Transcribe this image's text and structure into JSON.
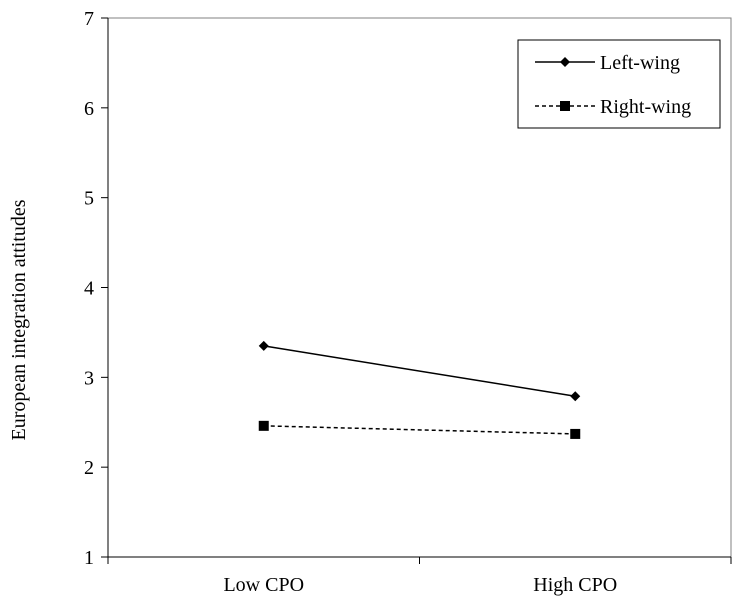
{
  "chart_data": {
    "type": "line",
    "categories": [
      "Low CPO",
      "High CPO"
    ],
    "ylabel": "European integration attitudes",
    "xlabel": "",
    "ylim": [
      1,
      7
    ],
    "yticks": [
      1,
      2,
      3,
      4,
      5,
      6,
      7
    ],
    "grid": false,
    "legend_position": "top-right",
    "series": [
      {
        "name": "Left-wing",
        "values": [
          3.35,
          2.79
        ],
        "marker": "diamond",
        "line": "solid",
        "color": "#000000"
      },
      {
        "name": "Right-wing",
        "values": [
          2.46,
          2.37
        ],
        "marker": "square",
        "line": "dashed",
        "color": "#000000"
      }
    ]
  }
}
